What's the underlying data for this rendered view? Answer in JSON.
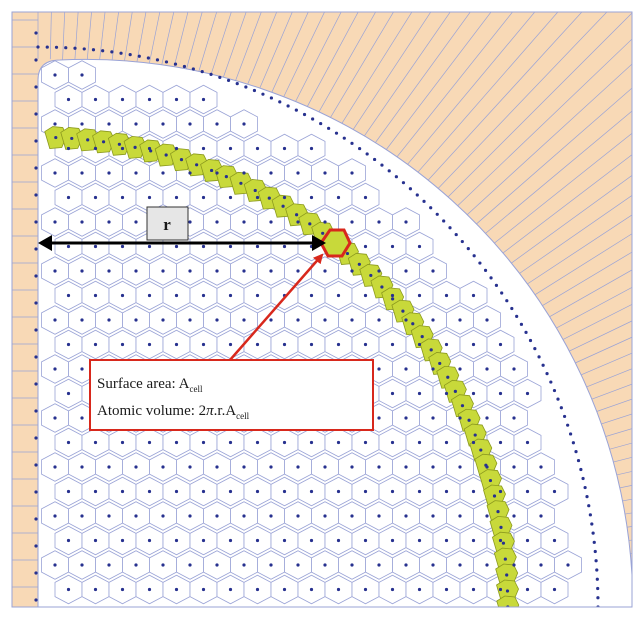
{
  "radius_label": "r",
  "annotation": {
    "surface_prefix": "Surface area: A",
    "surface_sub": "cell",
    "volume_prefix": "Atomic volume: 2",
    "volume_pi": "π",
    "volume_mid": ".r.A",
    "volume_sub": "cell"
  },
  "colors": {
    "outer_region": "#f8d9b6",
    "cell_fill": "#ffffff",
    "cell_edge": "#9aa3d6",
    "atom_dot": "#27318f",
    "highlight_shell": "#c8d93a",
    "highlight_edge": "#8c9a1e",
    "selected_cell": "#d8281c",
    "annotation_border": "#d8281c",
    "arrow": "#d8281c",
    "radius_arrow": "#000000"
  }
}
